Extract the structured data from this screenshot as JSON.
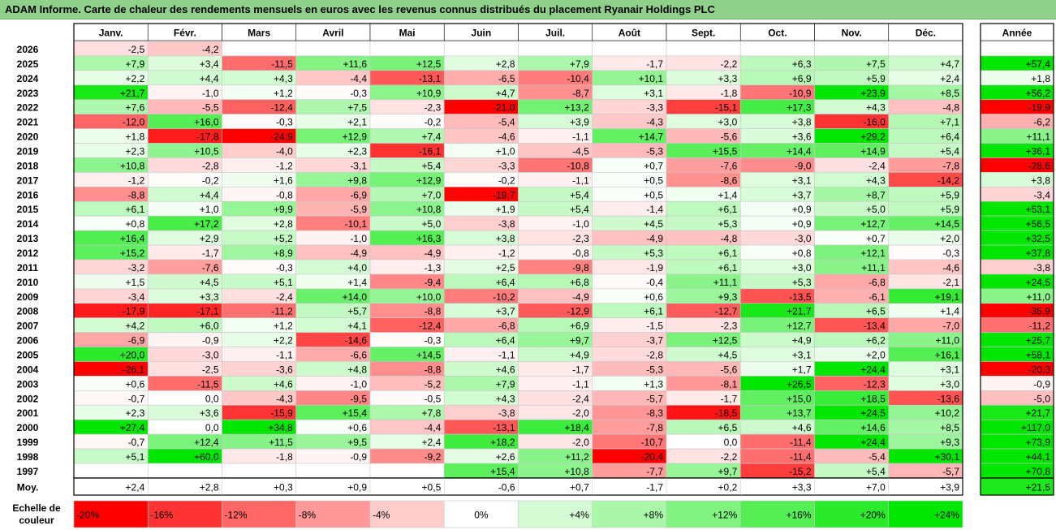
{
  "title": "ADAM Informe. Carte de chaleur des rendements mensuels en euros avec les revenus connus distribués du placement Ryanair Holdings PLC",
  "chart_data": {
    "type": "heatmap",
    "title": "ADAM Informe. Carte de chaleur des rendements mensuels en euros avec les revenus connus distribués du placement Ryanair Holdings PLC",
    "months": [
      "Janv.",
      "Févr.",
      "Mars",
      "Avril",
      "Mai",
      "Juin",
      "Juil.",
      "Août",
      "Sept.",
      "Oct.",
      "Nov.",
      "Déc."
    ],
    "year_header": "Année",
    "rows": [
      {
        "year": "2026",
        "m": [
          "-2,5",
          "-4,2",
          "",
          "",
          "",
          "",
          "",
          "",
          "",
          "",
          "",
          ""
        ],
        "y": ""
      },
      {
        "year": "2025",
        "m": [
          "+7,9",
          "+3,4",
          "-11,5",
          "+11,6",
          "+12,5",
          "+2,8",
          "+7,9",
          "-1,7",
          "-2,2",
          "+6,3",
          "+7,5",
          "+4,7"
        ],
        "y": "+57,4"
      },
      {
        "year": "2024",
        "m": [
          "+2,2",
          "+4,4",
          "+4,3",
          "-4,4",
          "-13,1",
          "-6,5",
          "-10,4",
          "+10,1",
          "+3,3",
          "+6,9",
          "+5,9",
          "+2,4"
        ],
        "y": "+1,8"
      },
      {
        "year": "2023",
        "m": [
          "+21,7",
          "-1,0",
          "+1,2",
          "-0,3",
          "+10,9",
          "+4,7",
          "-8,7",
          "+3,1",
          "-1,8",
          "-10,9",
          "+23,9",
          "+8,5"
        ],
        "y": "+56,2"
      },
      {
        "year": "2022",
        "m": [
          "+7,6",
          "-5,5",
          "-12,4",
          "+7,5",
          "-2,3",
          "-21,0",
          "+13,2",
          "-3,3",
          "-15,1",
          "+17,3",
          "+4,3",
          "-4,8"
        ],
        "y": "-19,9"
      },
      {
        "year": "2021",
        "m": [
          "-12,0",
          "+16,0",
          "-0,3",
          "+2,1",
          "-0,2",
          "-5,4",
          "+3,9",
          "-4,3",
          "+3,0",
          "+3,8",
          "-16,0",
          "+7,1"
        ],
        "y": "-6,2"
      },
      {
        "year": "2020",
        "m": [
          "+1,8",
          "-17,8",
          "-24,9",
          "+12,9",
          "+7,4",
          "-4,6",
          "-1,1",
          "+14,7",
          "-5,6",
          "+3,6",
          "+29,2",
          "+6,4"
        ],
        "y": "+11,1"
      },
      {
        "year": "2019",
        "m": [
          "+2,3",
          "+10,5",
          "-4,0",
          "+2,3",
          "-16,1",
          "+1,0",
          "-4,5",
          "-5,3",
          "+15,5",
          "+14,4",
          "+14,9",
          "+5,4"
        ],
        "y": "+36,1"
      },
      {
        "year": "2018",
        "m": [
          "+10,8",
          "-2,8",
          "-1,2",
          "-3,1",
          "+5,4",
          "-3,3",
          "-10,8",
          "+0,7",
          "-7,6",
          "-9,0",
          "-2,4",
          "-7,8"
        ],
        "y": "-28,6"
      },
      {
        "year": "2017",
        "m": [
          "-1,2",
          "-0,2",
          "+1,6",
          "+9,8",
          "+12,9",
          "-0,2",
          "-1,1",
          "+0,5",
          "-8,6",
          "+3,1",
          "+4,3",
          "-14,2"
        ],
        "y": "+3,8"
      },
      {
        "year": "2016",
        "m": [
          "-8,8",
          "+4,4",
          "-0,8",
          "-6,9",
          "+7,0",
          "-19,7",
          "+5,4",
          "+0,5",
          "+1,4",
          "+3,7",
          "+8,7",
          "+5,9"
        ],
        "y": "-3,4"
      },
      {
        "year": "2015",
        "m": [
          "+6,1",
          "+1,0",
          "+9,9",
          "-5,9",
          "+10,8",
          "+1,9",
          "+5,4",
          "-1,4",
          "+6,1",
          "+0,9",
          "+5,0",
          "+5,9"
        ],
        "y": "+53,1"
      },
      {
        "year": "2014",
        "m": [
          "+0,8",
          "+17,2",
          "+2,8",
          "-10,1",
          "+5,0",
          "-3,8",
          "-1,0",
          "+4,5",
          "+5,3",
          "+0,9",
          "+12,7",
          "+14,5"
        ],
        "y": "+56,5"
      },
      {
        "year": "2013",
        "m": [
          "+16,4",
          "+2,9",
          "+5,2",
          "-1,0",
          "+16,3",
          "+3,8",
          "-2,3",
          "-4,9",
          "-4,8",
          "-3,0",
          "+0,7",
          "+2,0"
        ],
        "y": "+32,5"
      },
      {
        "year": "2012",
        "m": [
          "+15,2",
          "-1,7",
          "+8,9",
          "-4,9",
          "-4,9",
          "-1,2",
          "-0,8",
          "+5,3",
          "+6,1",
          "+0,8",
          "+12,1",
          "-0,3"
        ],
        "y": "+37,8"
      },
      {
        "year": "2011",
        "m": [
          "-3,2",
          "-7,6",
          "-0,3",
          "+4,0",
          "-1,3",
          "+2,5",
          "-9,8",
          "-1,9",
          "+6,1",
          "+3,0",
          "+11,1",
          "-4,6"
        ],
        "y": "-3,8"
      },
      {
        "year": "2010",
        "m": [
          "+1,5",
          "+4,5",
          "+5,1",
          "+1,4",
          "-9,4",
          "+6,4",
          "+6,8",
          "-0,4",
          "+11,1",
          "+5,3",
          "-6,8",
          "-2,1"
        ],
        "y": "+24,5"
      },
      {
        "year": "2009",
        "m": [
          "-3,4",
          "+3,3",
          "-2,4",
          "+14,0",
          "+10,0",
          "-10,2",
          "-4,9",
          "+0,6",
          "+9,3",
          "-13,5",
          "-6,1",
          "+19,1"
        ],
        "y": "+11,0"
      },
      {
        "year": "2008",
        "m": [
          "-17,9",
          "-17,1",
          "-11,2",
          "+5,7",
          "-8,8",
          "+3,7",
          "-12,9",
          "+6,1",
          "-12,7",
          "+21,7",
          "+6,5",
          "+1,4"
        ],
        "y": "-35,9"
      },
      {
        "year": "2007",
        "m": [
          "+4,2",
          "+6,0",
          "+1,2",
          "+4,1",
          "-12,4",
          "-6,8",
          "+6,9",
          "-1,5",
          "-2,3",
          "+12,7",
          "-13,4",
          "-7,0"
        ],
        "y": "-11,2"
      },
      {
        "year": "2006",
        "m": [
          "-6,9",
          "-0,9",
          "+2,2",
          "-14,6",
          "-0,3",
          "+6,4",
          "+9,7",
          "-3,7",
          "+12,5",
          "+4,9",
          "+6,2",
          "+11,0"
        ],
        "y": "+25,7"
      },
      {
        "year": "2005",
        "m": [
          "+20,0",
          "-3,0",
          "-1,1",
          "-6,6",
          "+14,5",
          "-1,1",
          "+4,9",
          "-2,8",
          "+4,5",
          "+3,1",
          "+2,0",
          "+16,1"
        ],
        "y": "+58,1"
      },
      {
        "year": "2004",
        "m": [
          "-26,1",
          "-2,5",
          "-3,6",
          "+4,8",
          "-8,8",
          "+4,6",
          "-1,7",
          "-5,3",
          "-5,6",
          "+1,7",
          "+24,4",
          "+3,1"
        ],
        "y": "-20,3"
      },
      {
        "year": "2003",
        "m": [
          "+0,6",
          "-11,5",
          "+4,6",
          "-1,0",
          "-5,2",
          "+7,9",
          "-1,1",
          "+1,3",
          "-8,1",
          "+26,5",
          "-12,3",
          "+3,0"
        ],
        "y": "-0,9"
      },
      {
        "year": "2002",
        "m": [
          "-0,7",
          "0,0",
          "-4,3",
          "-9,5",
          "-0,5",
          "+4,3",
          "-2,4",
          "-5,7",
          "-1,7",
          "+15,0",
          "+18,5",
          "-13,6"
        ],
        "y": "-5,0"
      },
      {
        "year": "2001",
        "m": [
          "+2,3",
          "+3,6",
          "-15,9",
          "+15,4",
          "+7,8",
          "-3,8",
          "-2,0",
          "-8,3",
          "-18,5",
          "+13,7",
          "+24,5",
          "+10,2"
        ],
        "y": "+21,7"
      },
      {
        "year": "2000",
        "m": [
          "+27,4",
          "0,0",
          "+34,8",
          "+0,6",
          "-4,4",
          "-13,1",
          "+18,4",
          "-7,8",
          "+6,5",
          "+4,6",
          "+14,6",
          "+8,5"
        ],
        "y": "+117,0"
      },
      {
        "year": "1999",
        "m": [
          "-0,7",
          "+12,4",
          "+11,5",
          "+9,5",
          "+2,4",
          "+18,2",
          "-2,0",
          "-10,7",
          "0,0",
          "-11,4",
          "+24,4",
          "+9,3"
        ],
        "y": "+73,9"
      },
      {
        "year": "1998",
        "m": [
          "+5,1",
          "+60,0",
          "-1,8",
          "-0,9",
          "-9,2",
          "+2,6",
          "+11,2",
          "-20,4",
          "-2,2",
          "-11,4",
          "-5,4",
          "+30,1"
        ],
        "y": "+44,1"
      },
      {
        "year": "1997",
        "m": [
          "",
          "",
          "",
          "",
          "",
          "+15,4",
          "+10,8",
          "-7,7",
          "+9,7",
          "-15,2",
          "+5,4",
          "-5,7"
        ],
        "y": "+70,8"
      }
    ],
    "average": {
      "label": "Moy.",
      "m": [
        "+2,4",
        "+2,8",
        "+0,3",
        "+0,9",
        "+0,5",
        "-0,6",
        "+0,7",
        "-1,7",
        "+0,2",
        "+3,3",
        "+7,0",
        "+3,9"
      ],
      "y": "+21,5"
    },
    "scale": {
      "label_line1": "Echelle de",
      "label_line2": "couleur",
      "values": [
        "-20%",
        "-16%",
        "-12%",
        "-8%",
        "-4%",
        "0%",
        "+4%",
        "+8%",
        "+12%",
        "+16%",
        "+20%",
        "+24%"
      ]
    }
  }
}
